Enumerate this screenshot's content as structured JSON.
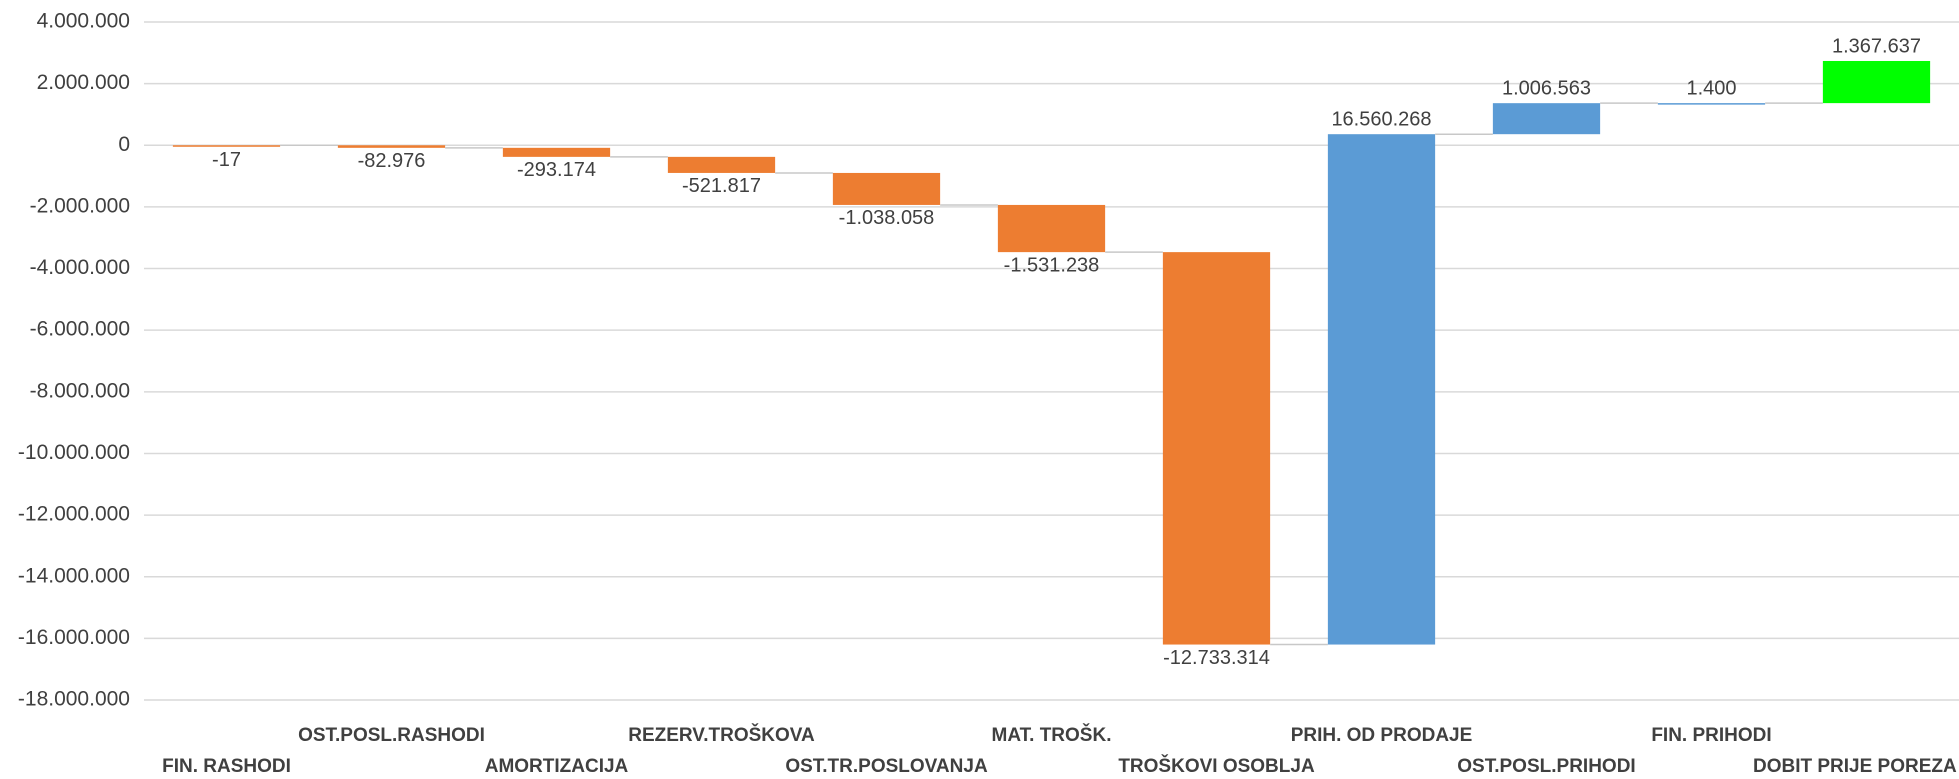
{
  "chart_data": {
    "type": "waterfall",
    "categories": [
      "FIN. RASHODI",
      "OST.POSL.RASHODI",
      "AMORTIZACIJA",
      "REZERV.TROŠKOVA",
      "OST.TR.POSLOVANJA",
      "MAT. TROŠK.",
      "TROŠKOVI OSOBLJA",
      "PRIH. OD PRODAJE",
      "OST.POSL.PRIHODI",
      "FIN. PRIHODI",
      "DOBIT PRIJE POREZA"
    ],
    "values": [
      -17,
      -82976,
      -293174,
      -521817,
      -1038058,
      -1531238,
      -12733314,
      16560268,
      1006563,
      1400,
      1367637
    ],
    "value_labels": [
      "-17",
      "-82.976",
      "-293.174",
      "-521.817",
      "-1.038.058",
      "-1.531.238",
      "-12.733.314",
      "16.560.268",
      "1.006.563",
      "1.400",
      "1.367.637"
    ],
    "colors": [
      "#ed7d31",
      "#ed7d31",
      "#ed7d31",
      "#ed7d31",
      "#ed7d31",
      "#ed7d31",
      "#ed7d31",
      "#5b9bd5",
      "#5b9bd5",
      "#5b9bd5",
      "#00ff00"
    ],
    "ylim": [
      -18000000,
      4000000
    ],
    "yticks": [
      {
        "value": -18000000,
        "label": "-18.000.000"
      },
      {
        "value": -16000000,
        "label": "-16.000.000"
      },
      {
        "value": -14000000,
        "label": "-14.000.000"
      },
      {
        "value": -12000000,
        "label": "-12.000.000"
      },
      {
        "value": -10000000,
        "label": "-10.000.000"
      },
      {
        "value": -8000000,
        "label": "-8.000.000"
      },
      {
        "value": -6000000,
        "label": "-6.000.000"
      },
      {
        "value": -4000000,
        "label": "-4.000.000"
      },
      {
        "value": -2000000,
        "label": "-2.000.000"
      },
      0,
      {
        "value": 2000000,
        "label": "2.000.000"
      },
      {
        "value": 4000000,
        "label": "4.000.000"
      }
    ],
    "grid": true
  }
}
